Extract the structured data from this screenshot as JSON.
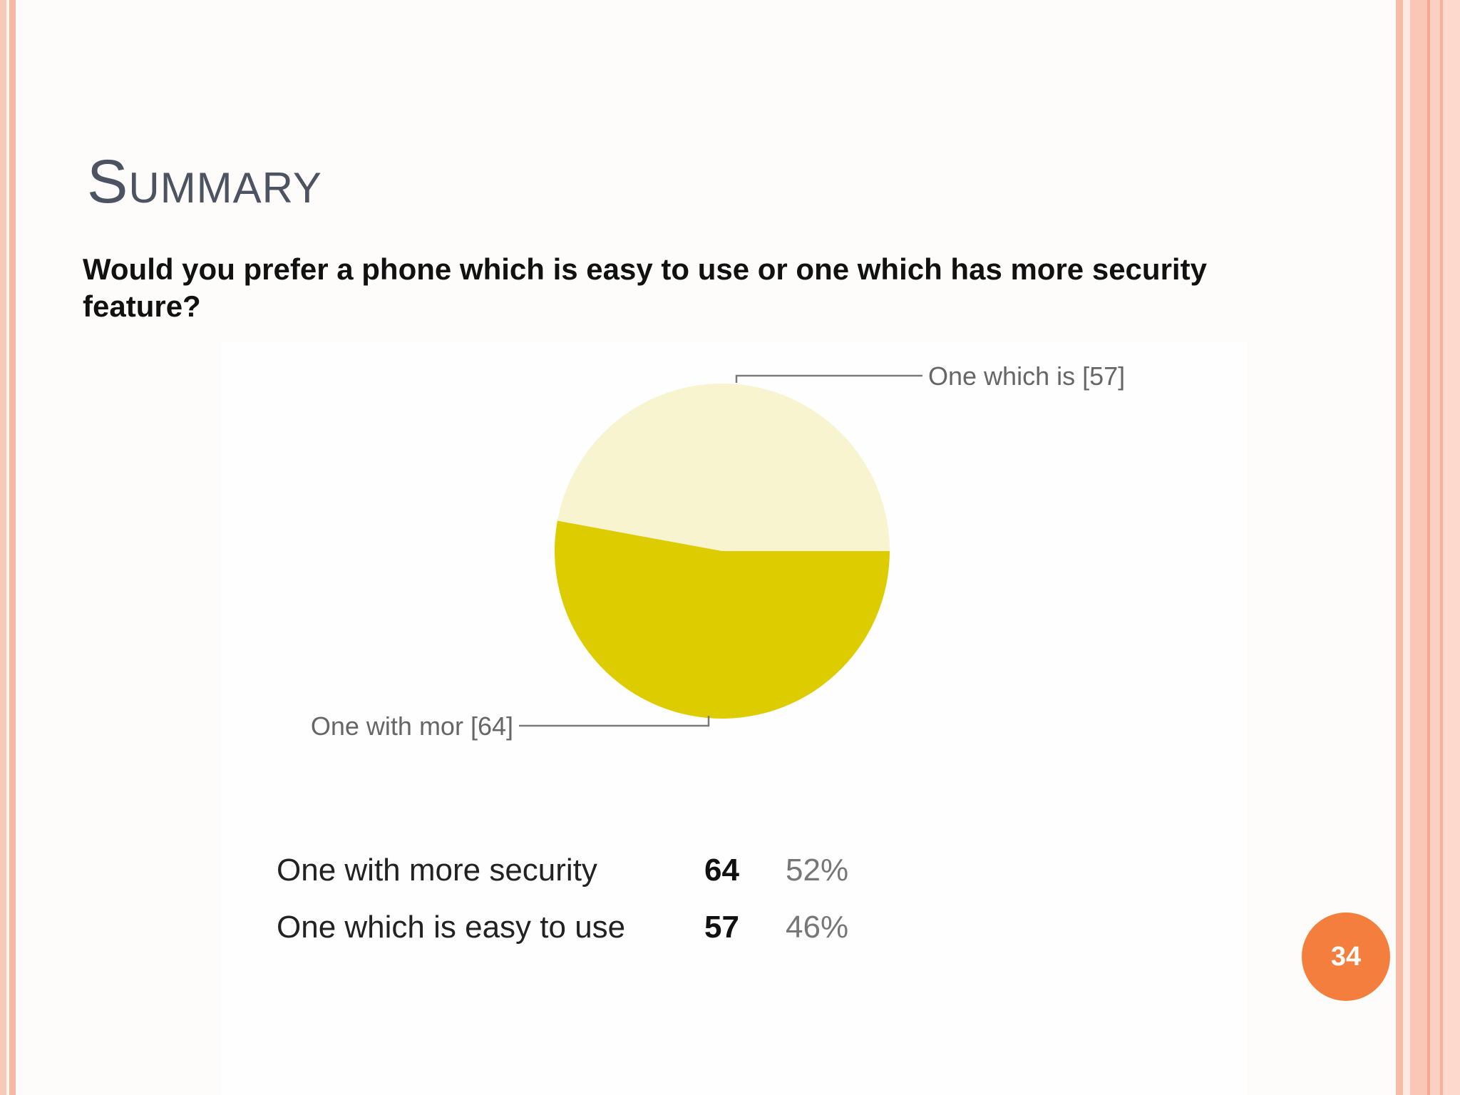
{
  "slide": {
    "title": "Summary",
    "question": "Would you prefer a phone which is easy to use or one which has more security feature?",
    "page_number": "34"
  },
  "chart_data": {
    "type": "pie",
    "title": "",
    "slices": [
      {
        "label": "One which is [57]",
        "value": 57,
        "color": "#f7f4cf"
      },
      {
        "label": "One with mor [64]",
        "value": 64,
        "color": "#dccc00"
      }
    ],
    "table": [
      {
        "name": "One with more security",
        "count": "64",
        "percent": "52%"
      },
      {
        "name": "One which is easy to use",
        "count": "57",
        "percent": "46%"
      }
    ]
  }
}
